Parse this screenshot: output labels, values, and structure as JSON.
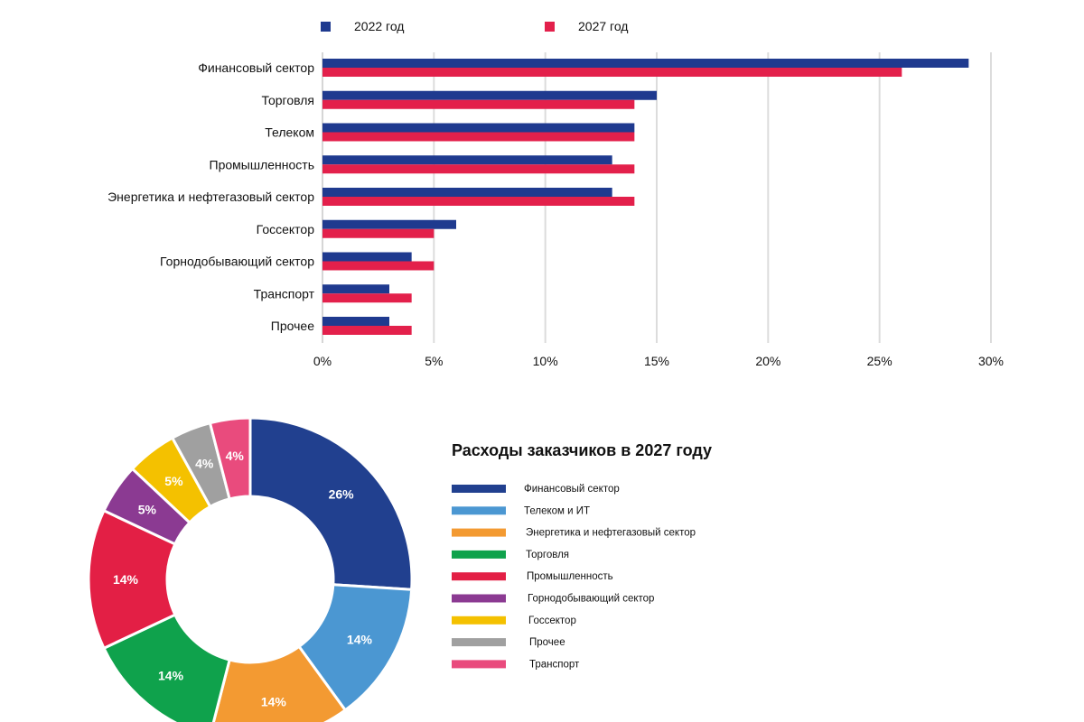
{
  "chart_data": [
    {
      "type": "bar",
      "orientation": "horizontal",
      "categories": [
        "Финансовый сектор",
        "Торговля",
        "Телеком",
        "Промышленность",
        "Энергетика и нефтегазовый сектор",
        "Госсектор",
        "Горнодобывающий сектор",
        "Транспорт",
        "Прочее"
      ],
      "series": [
        {
          "name": "2022 год",
          "color": "#1f3a8f",
          "values": [
            29,
            15,
            14,
            13,
            13,
            6,
            4,
            3,
            3
          ]
        },
        {
          "name": "2027 год",
          "color": "#e3204b",
          "values": [
            26,
            14,
            14,
            14,
            14,
            5,
            5,
            4,
            4
          ]
        }
      ],
      "xlim": [
        0,
        30
      ],
      "xticks": [
        "0%",
        "5%",
        "10%",
        "15%",
        "20%",
        "25%",
        "30%"
      ],
      "grid": "vertical",
      "legend_position": "top"
    },
    {
      "type": "pie",
      "style": "donut",
      "title": "Расходы заказчиков в 2027 году",
      "slices": [
        {
          "legend": "Финансовый сектор",
          "value": 26,
          "label": "26%",
          "color": "#21408f"
        },
        {
          "legend": "Телеком и ИТ",
          "value": 14,
          "label": "14%",
          "color": "#4b97d2"
        },
        {
          "legend": "Энергетика и нефтегазовый сектор",
          "value": 14,
          "label": "14%",
          "color": "#f39a32"
        },
        {
          "legend": "Торговля",
          "value": 14,
          "label": "14%",
          "color": "#0fa24c"
        },
        {
          "legend": "Промышленность",
          "value": 14,
          "label": "14%",
          "color": "#e31f45"
        },
        {
          "legend": "Горнодобывающий сектор",
          "value": 5,
          "label": "5%",
          "color": "#8b3a92"
        },
        {
          "legend": "Госсектор",
          "value": 5,
          "label": "5%",
          "color": "#f4c100"
        },
        {
          "legend": "Прочее",
          "value": 4,
          "label": "4%",
          "color": "#a0a0a0"
        },
        {
          "legend": "Транспорт",
          "value": 4,
          "label": "4%",
          "color": "#e94b7d"
        }
      ],
      "legend_position": "right"
    }
  ]
}
